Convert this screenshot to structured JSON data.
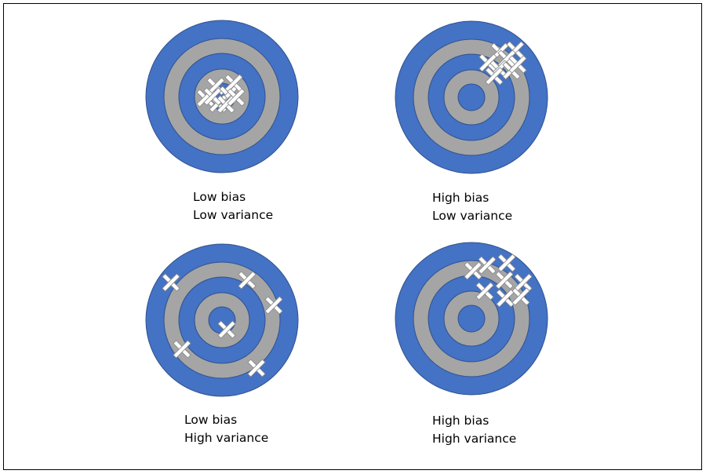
{
  "colors": {
    "outer_ring": "#4472c4",
    "middle_ring": "#a5a5a5",
    "ring_stroke": "#2f528f",
    "marker_fill": "#ffffff",
    "marker_stroke": "#8c8c8c"
  },
  "targets": [
    {
      "id": "low-bias-low-variance",
      "caption": {
        "line1": "Low bias",
        "line2": "Low variance"
      }
    },
    {
      "id": "high-bias-low-variance",
      "caption": {
        "line1": "High bias",
        "line2": "Low variance"
      }
    },
    {
      "id": "low-bias-high-variance",
      "caption": {
        "line1": "Low bias",
        "line2": "High variance"
      }
    },
    {
      "id": "high-bias-high-variance",
      "caption": {
        "line1": "High bias",
        "line2": "High variance"
      }
    }
  ]
}
